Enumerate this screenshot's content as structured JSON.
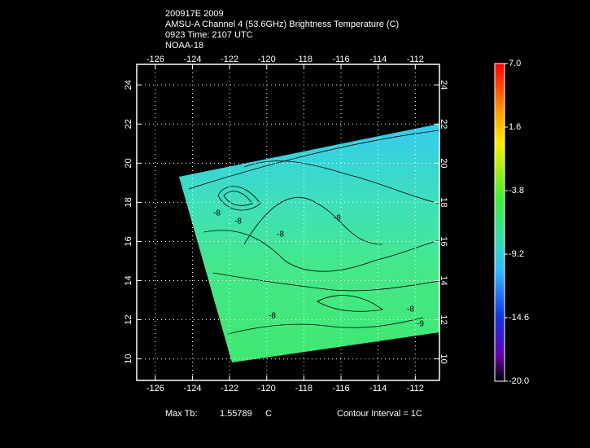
{
  "header": {
    "lines": [
      "200917E 2009",
      "AMSU-A Channel 4 (53.6GHz) Brightness Temperature (C)",
      "0923 Time: 2107 UTC",
      "NOAA-18"
    ]
  },
  "map": {
    "lonlim": [
      -127,
      -110.7
    ],
    "latlim": [
      8.9,
      25.05
    ],
    "lon_ticks": [
      -126,
      -124,
      -122,
      -120,
      -118,
      -116,
      -114,
      -112
    ],
    "lat_ticks": [
      10,
      12,
      14,
      16,
      18,
      20,
      22,
      24
    ],
    "contour_labels": [
      "-8",
      "-8",
      "-8",
      "-8",
      "-9",
      "-8",
      "-8"
    ]
  },
  "colorbar": {
    "lim": [
      -20,
      7
    ],
    "ticks": [
      {
        "value": 7,
        "label": "7.0"
      },
      {
        "value": 1.6,
        "label": "1.6"
      },
      {
        "value": -3.8,
        "label": "-3.8"
      },
      {
        "value": -9.2,
        "label": "-9.2"
      },
      {
        "value": -14.6,
        "label": "-14.6"
      },
      {
        "value": -20,
        "label": "-20.0"
      }
    ]
  },
  "footer": {
    "max_label": "Max Tb:",
    "max_value": "1.55789",
    "unit": "C",
    "contour": "Contour Interval = 1C"
  }
}
